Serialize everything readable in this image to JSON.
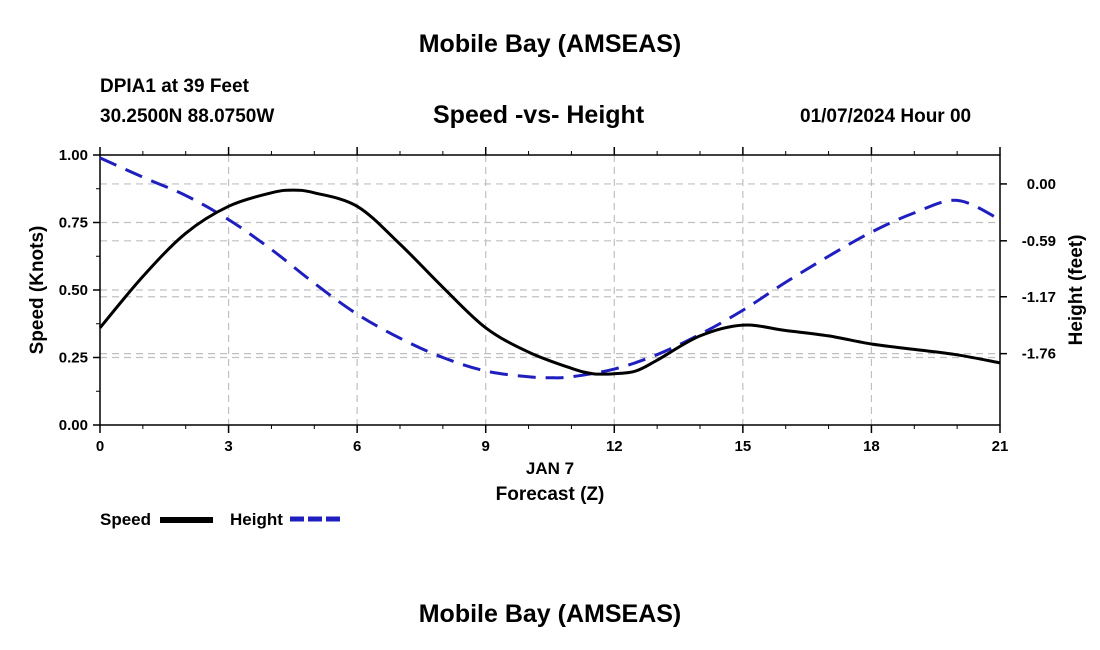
{
  "page": {
    "title_top": "Mobile Bay (AMSEAS)",
    "title_bottom": "Mobile Bay (AMSEAS)",
    "station": "DPIA1 at 39 Feet",
    "coords": "30.2500N  88.0750W",
    "subtitle": "Speed -vs- Height",
    "datetime": "01/07/2024 Hour 00"
  },
  "legend": {
    "speed_label": "Speed",
    "height_label": "Height"
  },
  "colors": {
    "speed": "#000000",
    "height": "#1f1fbf",
    "grid": "#c0c0c0"
  },
  "chart_data": {
    "type": "line",
    "title": "Speed -vs- Height",
    "xlabel": "Forecast (Z)",
    "xsublabel": "JAN 7",
    "ylabel": "Speed (Knots)",
    "y2label": "Height (feet)",
    "xlim": [
      0,
      21
    ],
    "ylim": [
      0,
      1
    ],
    "y2lim": [
      -2.5,
      0.3
    ],
    "xticks": [
      0,
      3,
      6,
      9,
      12,
      15,
      18,
      21
    ],
    "yticks": [
      0.0,
      0.25,
      0.5,
      0.75,
      1.0
    ],
    "ytick_labels": [
      "0.00",
      "0.25",
      "0.50",
      "0.75",
      "1.00"
    ],
    "y2ticks": [
      0.0,
      -0.59,
      -1.17,
      -1.76
    ],
    "y2tick_labels": [
      "0.00",
      "-0.59",
      "-1.17",
      "-1.76"
    ],
    "grid": true,
    "series": [
      {
        "name": "Speed",
        "axis": "left",
        "style": "solid",
        "x": [
          0,
          1,
          2,
          3,
          4,
          4.5,
          5,
          6,
          7,
          8,
          9,
          10,
          11,
          11.5,
          12,
          12.5,
          13,
          14,
          15,
          16,
          17,
          18,
          19,
          20,
          21
        ],
        "values": [
          0.36,
          0.55,
          0.71,
          0.81,
          0.86,
          0.87,
          0.86,
          0.81,
          0.67,
          0.51,
          0.36,
          0.27,
          0.21,
          0.19,
          0.19,
          0.2,
          0.24,
          0.33,
          0.37,
          0.35,
          0.33,
          0.3,
          0.28,
          0.26,
          0.23
        ]
      },
      {
        "name": "Height",
        "axis": "right",
        "style": "dashed",
        "x": [
          0,
          1,
          2,
          3,
          4,
          5,
          6,
          7,
          8,
          9,
          10,
          10.5,
          11,
          12,
          13,
          14,
          15,
          16,
          17,
          18,
          19,
          20,
          21
        ],
        "values": [
          0.27,
          0.07,
          -0.12,
          -0.37,
          -0.68,
          -1.03,
          -1.35,
          -1.6,
          -1.8,
          -1.94,
          -2.0,
          -2.01,
          -2.0,
          -1.92,
          -1.77,
          -1.56,
          -1.31,
          -1.02,
          -0.75,
          -0.5,
          -0.3,
          -0.17,
          -0.37
        ]
      }
    ]
  }
}
